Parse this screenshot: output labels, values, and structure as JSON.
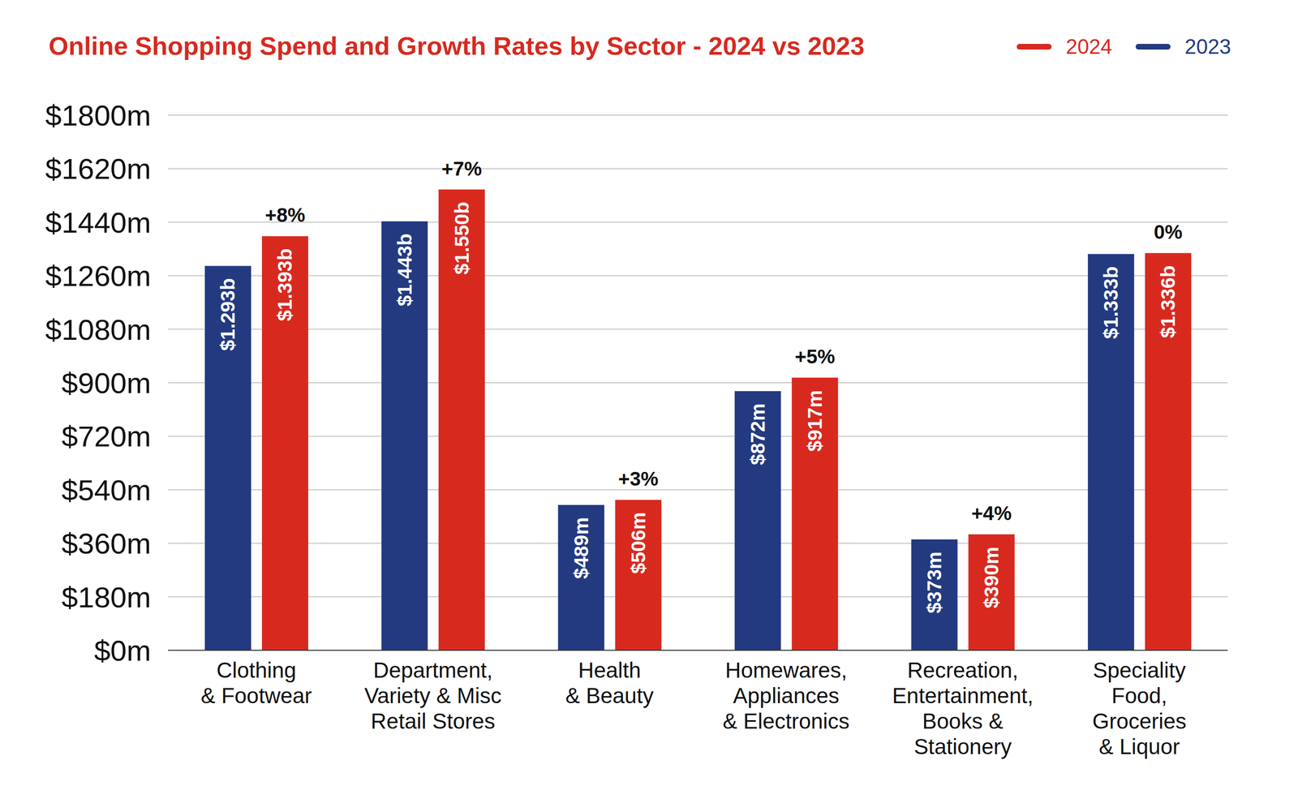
{
  "chart_data": {
    "type": "bar",
    "title": "Online Shopping Spend and Growth Rates by Sector - 2024 vs 2023",
    "categories": [
      "Clothing\n& Footwear",
      "Department,\nVariety & Misc\nRetail Stores",
      "Health\n& Beauty",
      "Homewares,\nAppliances\n& Electronics",
      "Recreation,\nEntertainment,\nBooks &\nStationery",
      "Speciality\nFood,\nGroceries\n& Liquor"
    ],
    "series": [
      {
        "name": "2023",
        "color": "#233a80",
        "values": [
          1293,
          1443,
          489,
          872,
          373,
          1333
        ],
        "value_labels": [
          "$1.293b",
          "$1.443b",
          "$489m",
          "$872m",
          "$373m",
          "$1.333b"
        ]
      },
      {
        "name": "2024",
        "color": "#d8291f",
        "values": [
          1393,
          1550,
          506,
          917,
          390,
          1336
        ],
        "value_labels": [
          "$1.393b",
          "$1.550b",
          "$506m",
          "$917m",
          "$390m",
          "$1.336b"
        ]
      }
    ],
    "annotations": [
      "+8%",
      "+7%",
      "+3%",
      "+5%",
      "+4%",
      "0%"
    ],
    "ylim": [
      0,
      1800
    ],
    "yticks": [
      {
        "value": 0,
        "label": "$0m"
      },
      {
        "value": 180,
        "label": "$180m"
      },
      {
        "value": 360,
        "label": "$360m"
      },
      {
        "value": 540,
        "label": "$540m"
      },
      {
        "value": 720,
        "label": "$720m"
      },
      {
        "value": 900,
        "label": "$900m"
      },
      {
        "value": 1080,
        "label": "$1080m"
      },
      {
        "value": 1260,
        "label": "$1260m"
      },
      {
        "value": 1440,
        "label": "$1440m"
      },
      {
        "value": 1620,
        "label": "$1620m"
      },
      {
        "value": 1800,
        "label": "$1800m"
      }
    ],
    "grid": true,
    "legend": "top-right",
    "data_labels": true
  }
}
